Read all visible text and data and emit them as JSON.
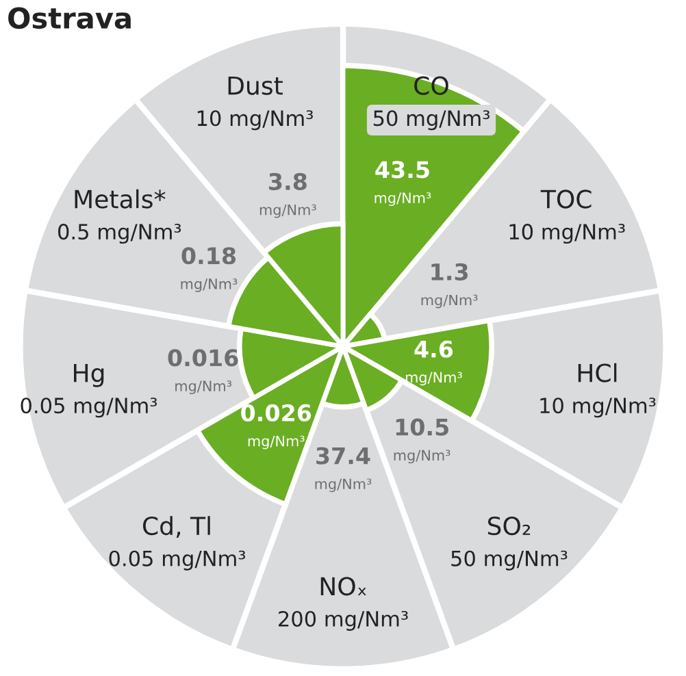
{
  "chart_data": {
    "type": "other",
    "title": "Ostrava",
    "categories": [
      "CO",
      "TOC",
      "HCl",
      "SO₂",
      "NOₓ",
      "Cd, Tl",
      "Hg",
      "Metals*",
      "Dust"
    ],
    "series": [
      {
        "color": "#dadbdd",
        "values": [
          50,
          10,
          10,
          50,
          200,
          0.05,
          0.05,
          0.5,
          10
        ],
        "value_labels": [
          "50 mg/Nm³",
          "10 mg/Nm³",
          "10 mg/Nm³",
          "50 mg/Nm³",
          "200 mg/Nm³",
          "0.05 mg/Nm³",
          "0.05 mg/Nm³",
          "0.5 mg/Nm³",
          "10 mg/Nm³"
        ]
      },
      {
        "color": "#6aae23",
        "values": [
          43.5,
          1.3,
          4.6,
          10.5,
          37.4,
          0.026,
          0.016,
          0.18,
          3.8
        ],
        "value_labels": [
          "43.5\nmg/Nm³",
          "1.3\nmg/Nm³",
          "4.6\nmg/Nm³",
          "10.5\nmg/Nm³",
          "37.4\nmg/Nm³",
          "0.026\nmg/Nm³",
          "0.016\nmg/Nm³",
          "0.18\nmg/Nm³",
          "3.8\nmg/Nm³"
        ]
      }
    ]
  }
}
